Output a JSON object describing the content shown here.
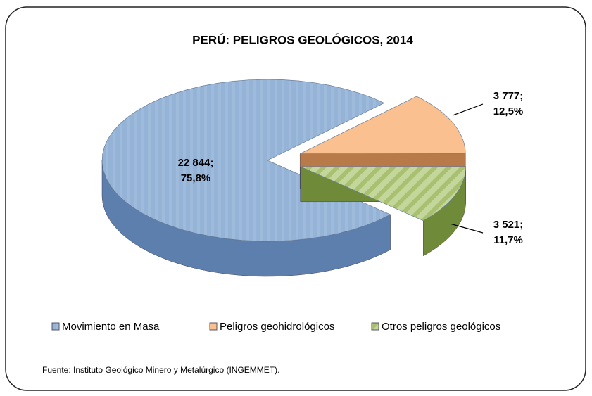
{
  "chart_data": {
    "type": "pie3d",
    "title": "PERÚ: PELIGROS GEOLÓGICOS, 2014",
    "categories": [
      "Movimiento en Masa",
      "Peligros geohidrológicos",
      "Otros peligros geológicos"
    ],
    "values": [
      22844,
      3777,
      3521
    ],
    "value_labels": [
      [
        "22 844;",
        "75,8%"
      ],
      [
        "3 777;",
        "12,5%"
      ],
      [
        "3 521;",
        "11,7%"
      ]
    ],
    "colors": [
      "#95b3d7",
      "#fac090",
      "#c3d69b"
    ],
    "legend": "bottom",
    "source": "Fuente: Instituto Geológico Minero y Metalúrgico (INGEMMET)."
  }
}
